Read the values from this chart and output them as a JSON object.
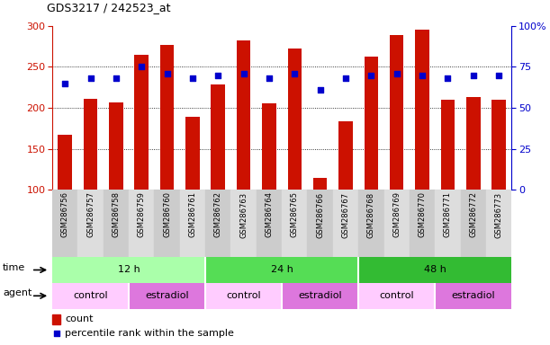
{
  "title": "GDS3217 / 242523_at",
  "samples": [
    "GSM286756",
    "GSM286757",
    "GSM286758",
    "GSM286759",
    "GSM286760",
    "GSM286761",
    "GSM286762",
    "GSM286763",
    "GSM286764",
    "GSM286765",
    "GSM286766",
    "GSM286767",
    "GSM286768",
    "GSM286769",
    "GSM286770",
    "GSM286771",
    "GSM286772",
    "GSM286773"
  ],
  "counts": [
    167,
    211,
    207,
    265,
    277,
    189,
    228,
    282,
    206,
    272,
    115,
    184,
    263,
    289,
    295,
    210,
    213,
    210
  ],
  "percentile_ranks": [
    65,
    68,
    68,
    75,
    71,
    68,
    70,
    71,
    68,
    71,
    61,
    68,
    70,
    71,
    70,
    68,
    70,
    70
  ],
  "ylim_left": [
    100,
    300
  ],
  "ylim_right": [
    0,
    100
  ],
  "yticks_left": [
    100,
    150,
    200,
    250,
    300
  ],
  "yticks_right": [
    0,
    25,
    50,
    75,
    100
  ],
  "bar_color": "#cc1100",
  "dot_color": "#0000cc",
  "background_color": "#ffffff",
  "time_groups": [
    {
      "label": "12 h",
      "start": 0,
      "end": 6,
      "color": "#aaffaa"
    },
    {
      "label": "24 h",
      "start": 6,
      "end": 12,
      "color": "#55dd55"
    },
    {
      "label": "48 h",
      "start": 12,
      "end": 18,
      "color": "#33bb33"
    }
  ],
  "agent_groups": [
    {
      "label": "control",
      "start": 0,
      "end": 3,
      "color": "#ffccff"
    },
    {
      "label": "estradiol",
      "start": 3,
      "end": 6,
      "color": "#dd77dd"
    },
    {
      "label": "control",
      "start": 6,
      "end": 9,
      "color": "#ffccff"
    },
    {
      "label": "estradiol",
      "start": 9,
      "end": 12,
      "color": "#dd77dd"
    },
    {
      "label": "control",
      "start": 12,
      "end": 15,
      "color": "#ffccff"
    },
    {
      "label": "estradiol",
      "start": 15,
      "end": 18,
      "color": "#dd77dd"
    }
  ],
  "legend_count_label": "count",
  "legend_pct_label": "percentile rank within the sample",
  "time_label": "time",
  "agent_label": "agent",
  "left_axis_color": "#cc1100",
  "right_axis_color": "#0000cc",
  "bar_width": 0.55,
  "xtick_bg_even": "#cccccc",
  "xtick_bg_odd": "#dddddd"
}
